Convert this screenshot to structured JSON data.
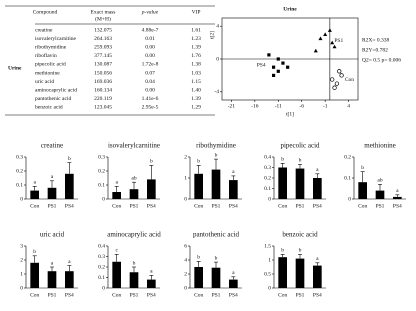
{
  "table": {
    "group": "Urine",
    "columns": [
      "Compound",
      "Exact mass",
      "p-value",
      "VIP"
    ],
    "column_note": "(M+H)",
    "rows": [
      [
        "creatine",
        "132.075",
        "4.88e-7",
        "1.61"
      ],
      [
        "isovalerylcarnitine",
        "264.163",
        "0.01",
        "1.23"
      ],
      [
        "ribothymidine",
        "259.093",
        "0.00",
        "1.39"
      ],
      [
        "riboflavin",
        "377.145",
        "0.00",
        "1.76"
      ],
      [
        "pipecolic acid",
        "130.087",
        "1.72e-8",
        "1.38"
      ],
      [
        "methionine",
        "150.056",
        "0.07",
        "1.03"
      ],
      [
        "uric acid",
        "169.036",
        "0.04",
        "1.15"
      ],
      [
        "aminocaprylic acid",
        "160.134",
        "0.00",
        "1.40"
      ],
      [
        "pantothenic acid",
        "220.119",
        "1.41e-6",
        "1.39"
      ],
      [
        "benzoic acid",
        "123.045",
        "2.95e-5",
        "1.29"
      ]
    ]
  },
  "chart_data": [
    {
      "type": "scatter",
      "title": "Urine",
      "x_label": "t[1]",
      "y_label": "t[2]",
      "xlim": [
        -23,
        6
      ],
      "ylim": [
        -5,
        5
      ],
      "xticks": [
        -21,
        -16,
        -11,
        -6,
        -1,
        4
      ],
      "yticks": [
        -4,
        0,
        4
      ],
      "annotations": [
        "R2X= 0.338",
        "R2Y=0.782",
        "Q2= 0.5 p= 0.006"
      ],
      "series": [
        {
          "name": "PS4",
          "color": "#000000",
          "marker": "square",
          "x": [
            -13,
            -12,
            -11,
            -10,
            -12,
            -11,
            -9
          ],
          "values": [
            0.5,
            -1,
            -1.5,
            -0.5,
            -2,
            0,
            -1
          ]
        },
        {
          "name": "PS1",
          "color": "#000000",
          "marker": "triangle",
          "x": [
            -2,
            -1,
            0.5,
            1,
            -3,
            0
          ],
          "values": [
            2.5,
            3,
            2,
            1.5,
            1,
            3.5
          ]
        },
        {
          "name": "Con",
          "color": "#000000",
          "marker": "circle-open",
          "x": [
            0.5,
            1.5,
            2.5,
            1,
            2
          ],
          "values": [
            -2.5,
            -3,
            -2,
            -3.5,
            -1.5
          ]
        }
      ]
    },
    {
      "type": "bar",
      "title": "creatine",
      "categories": [
        "Con",
        "PS1",
        "PS4"
      ],
      "values": [
        0.06,
        0.08,
        0.18
      ],
      "errors": [
        0.03,
        0.05,
        0.08
      ],
      "letters": [
        "a",
        "a",
        "b"
      ],
      "ylim": [
        0,
        0.3
      ],
      "yticks": [
        0,
        0.1,
        0.2,
        0.3
      ],
      "color": "#000000"
    },
    {
      "type": "bar",
      "title": "isovalerylcarnitine",
      "categories": [
        "Con",
        "PS1",
        "PS4"
      ],
      "values": [
        0.05,
        0.07,
        0.14
      ],
      "errors": [
        0.04,
        0.05,
        0.1
      ],
      "letters": [
        "a",
        "ab",
        "b"
      ],
      "ylim": [
        0,
        0.3
      ],
      "yticks": [
        0,
        0.1,
        0.2,
        0.3
      ],
      "color": "#000000"
    },
    {
      "type": "bar",
      "title": "ribothymidine",
      "categories": [
        "Con",
        "PS1",
        "PS4"
      ],
      "values": [
        1.2,
        1.4,
        0.9
      ],
      "errors": [
        0.4,
        0.5,
        0.2
      ],
      "letters": [
        "b",
        "b",
        "a"
      ],
      "ylim": [
        0,
        2
      ],
      "yticks": [
        0,
        1,
        2
      ],
      "color": "#000000"
    },
    {
      "type": "bar",
      "title": "pipecolic acid",
      "categories": [
        "Con",
        "PS1",
        "PS4"
      ],
      "values": [
        0.3,
        0.29,
        0.2
      ],
      "errors": [
        0.04,
        0.04,
        0.04
      ],
      "letters": [
        "b",
        "b",
        "a"
      ],
      "ylim": [
        0,
        0.4
      ],
      "yticks": [
        0,
        0.1,
        0.2,
        0.3,
        0.4
      ],
      "color": "#000000"
    },
    {
      "type": "bar",
      "title": "methionine",
      "categories": [
        "Con",
        "PS1",
        "PS4"
      ],
      "values": [
        0.08,
        0.04,
        0.01
      ],
      "errors": [
        0.05,
        0.03,
        0.01
      ],
      "letters": [
        "b",
        "ab",
        "a"
      ],
      "ylim": [
        0,
        0.2
      ],
      "yticks": [
        0,
        0.1,
        0.2
      ],
      "color": "#000000"
    },
    {
      "type": "bar",
      "title": "uric acid",
      "categories": [
        "Con",
        "PS1",
        "PS4"
      ],
      "values": [
        1.8,
        1.2,
        1.2
      ],
      "errors": [
        0.5,
        0.3,
        0.4
      ],
      "letters": [
        "b",
        "a",
        "a"
      ],
      "ylim": [
        0,
        3
      ],
      "yticks": [
        0,
        1,
        2,
        3
      ],
      "color": "#000000"
    },
    {
      "type": "bar",
      "title": "aminocaprylic acid",
      "categories": [
        "Con",
        "PS1",
        "PS4"
      ],
      "values": [
        0.25,
        0.15,
        0.08
      ],
      "errors": [
        0.07,
        0.05,
        0.04
      ],
      "letters": [
        "c",
        "b",
        "a"
      ],
      "ylim": [
        0,
        0.4
      ],
      "yticks": [
        0,
        0.1,
        0.2,
        0.3,
        0.4
      ],
      "color": "#000000"
    },
    {
      "type": "bar",
      "title": "pantothenic acid",
      "categories": [
        "Con",
        "PS1",
        "PS4"
      ],
      "values": [
        3.0,
        2.9,
        1.2
      ],
      "errors": [
        0.8,
        0.8,
        0.4
      ],
      "letters": [
        "b",
        "b",
        "a"
      ],
      "ylim": [
        0,
        6
      ],
      "yticks": [
        0,
        2,
        4,
        6
      ],
      "color": "#000000"
    },
    {
      "type": "bar",
      "title": "benzoic acid",
      "categories": [
        "Con",
        "PS1",
        "PS4"
      ],
      "values": [
        1.1,
        1.05,
        0.8
      ],
      "errors": [
        0.1,
        0.15,
        0.1
      ],
      "letters": [
        "b",
        "b",
        "a"
      ],
      "ylim": [
        0,
        1.5
      ],
      "yticks": [
        0,
        0.5,
        1,
        1.5
      ],
      "color": "#000000"
    }
  ]
}
